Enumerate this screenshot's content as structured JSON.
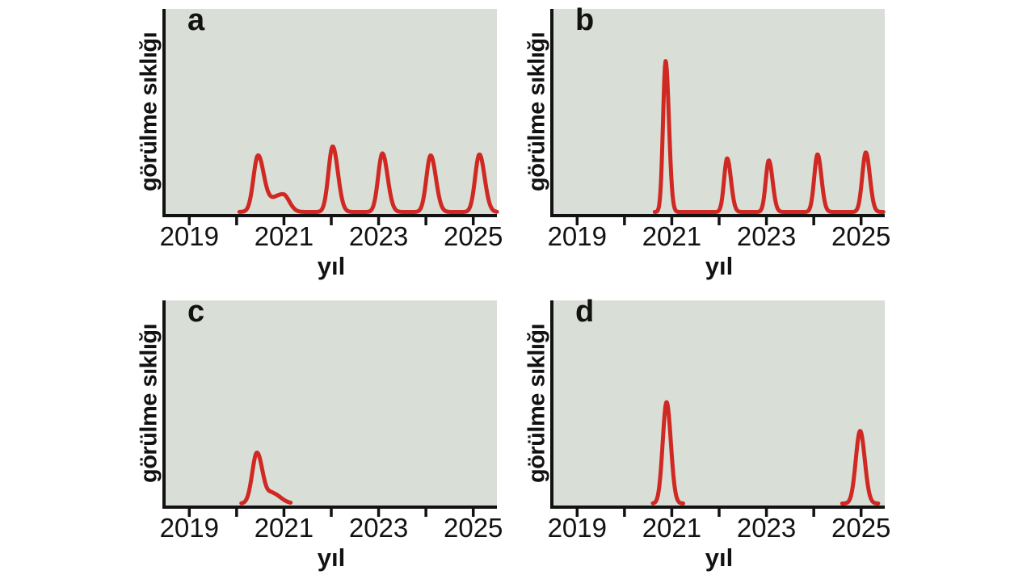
{
  "figure": {
    "background": "#ffffff",
    "panel_background": "#d9ded6",
    "axis_color": "#121212",
    "curve_color": "#d02822",
    "x_axis_label": "yıl",
    "y_axis_label": "görülme sıklığı"
  },
  "chart_data": [
    {
      "type": "line",
      "panel": "a",
      "label": "a",
      "xlabel": "yıl",
      "ylabel": "görülme sıklığı",
      "x_range": [
        2018.5,
        2025.5
      ],
      "y_range": [
        0,
        1
      ],
      "grid": false,
      "legend": null,
      "x_ticks": [
        2019,
        2020,
        2021,
        2022,
        2023,
        2024,
        2025
      ],
      "x_tick_labels": [
        {
          "year": 2019,
          "label": "2019"
        },
        {
          "year": 2021,
          "label": "2021"
        },
        {
          "year": 2023,
          "label": "2023"
        },
        {
          "year": 2025,
          "label": "2025"
        }
      ],
      "y_ticks": [],
      "curve_color": "#d02822",
      "segments": [
        {
          "x_start": 2020.06,
          "x_end": 2025.5,
          "peaks": [
            {
              "year": 2020.45,
              "rel_height": 0.27,
              "sigma_left": 0.095,
              "sigma_right": 0.12
            },
            {
              "year": 2020.98,
              "rel_height": 0.09,
              "sigma_left": 0.28,
              "sigma_right": 0.13
            },
            {
              "year": 2022.03,
              "rel_height": 0.33,
              "sigma_left": 0.09,
              "sigma_right": 0.11
            },
            {
              "year": 2023.08,
              "rel_height": 0.295,
              "sigma_left": 0.09,
              "sigma_right": 0.11
            },
            {
              "year": 2024.1,
              "rel_height": 0.285,
              "sigma_left": 0.09,
              "sigma_right": 0.11
            },
            {
              "year": 2025.13,
              "rel_height": 0.29,
              "sigma_left": 0.09,
              "sigma_right": 0.11
            }
          ]
        }
      ]
    },
    {
      "type": "line",
      "panel": "b",
      "label": "b",
      "xlabel": "yıl",
      "ylabel": "görülme sıklığı",
      "x_range": [
        2018.5,
        2025.5
      ],
      "y_range": [
        0,
        1
      ],
      "grid": false,
      "legend": null,
      "x_ticks": [
        2019,
        2020,
        2021,
        2022,
        2023,
        2024,
        2025
      ],
      "x_tick_labels": [
        {
          "year": 2019,
          "label": "2019"
        },
        {
          "year": 2021,
          "label": "2021"
        },
        {
          "year": 2023,
          "label": "2023"
        },
        {
          "year": 2025,
          "label": "2025"
        }
      ],
      "y_ticks": [],
      "curve_color": "#d02822",
      "segments": [
        {
          "x_start": 2020.64,
          "x_end": 2025.47,
          "peaks": [
            {
              "year": 2020.87,
              "rel_height": 0.76,
              "sigma_left": 0.055,
              "sigma_right": 0.07
            },
            {
              "year": 2022.17,
              "rel_height": 0.27,
              "sigma_left": 0.065,
              "sigma_right": 0.08
            },
            {
              "year": 2023.05,
              "rel_height": 0.26,
              "sigma_left": 0.065,
              "sigma_right": 0.08
            },
            {
              "year": 2024.08,
              "rel_height": 0.29,
              "sigma_left": 0.07,
              "sigma_right": 0.082
            },
            {
              "year": 2025.1,
              "rel_height": 0.3,
              "sigma_left": 0.075,
              "sigma_right": 0.085
            }
          ]
        }
      ]
    },
    {
      "type": "line",
      "panel": "c",
      "label": "c",
      "xlabel": "yıl",
      "ylabel": "görülme sıklığı",
      "x_range": [
        2018.5,
        2025.5
      ],
      "y_range": [
        0,
        1
      ],
      "grid": false,
      "legend": null,
      "x_ticks": [
        2019,
        2020,
        2021,
        2022,
        2023,
        2024,
        2025
      ],
      "x_tick_labels": [
        {
          "year": 2019,
          "label": "2019"
        },
        {
          "year": 2021,
          "label": "2021"
        },
        {
          "year": 2023,
          "label": "2023"
        },
        {
          "year": 2025,
          "label": "2025"
        }
      ],
      "y_ticks": [],
      "curve_color": "#d02822",
      "segments": [
        {
          "x_start": 2020.1,
          "x_end": 2021.14,
          "peaks": [
            {
              "year": 2020.43,
              "rel_height": 0.256,
              "sigma_left": 0.1,
              "sigma_right": 0.12
            },
            {
              "year": 2020.76,
              "rel_height": 0.05,
              "sigma_left": 0.1,
              "sigma_right": 0.17
            }
          ]
        }
      ]
    },
    {
      "type": "line",
      "panel": "d",
      "label": "d",
      "xlabel": "yıl",
      "ylabel": "görülme sıklığı",
      "x_range": [
        2018.5,
        2025.5
      ],
      "y_range": [
        0,
        1
      ],
      "grid": false,
      "legend": null,
      "x_ticks": [
        2019,
        2020,
        2021,
        2022,
        2023,
        2024,
        2025
      ],
      "x_tick_labels": [
        {
          "year": 2019,
          "label": "2019"
        },
        {
          "year": 2021,
          "label": "2021"
        },
        {
          "year": 2023,
          "label": "2023"
        },
        {
          "year": 2025,
          "label": "2025"
        }
      ],
      "y_ticks": [],
      "curve_color": "#d02822",
      "segments": [
        {
          "x_start": 2020.6,
          "x_end": 2021.24,
          "peaks": [
            {
              "year": 2020.89,
              "rel_height": 0.51,
              "sigma_left": 0.082,
              "sigma_right": 0.09
            }
          ]
        },
        {
          "x_start": 2024.6,
          "x_end": 2025.36,
          "peaks": [
            {
              "year": 2024.98,
              "rel_height": 0.365,
              "sigma_left": 0.092,
              "sigma_right": 0.098
            }
          ]
        }
      ]
    }
  ]
}
